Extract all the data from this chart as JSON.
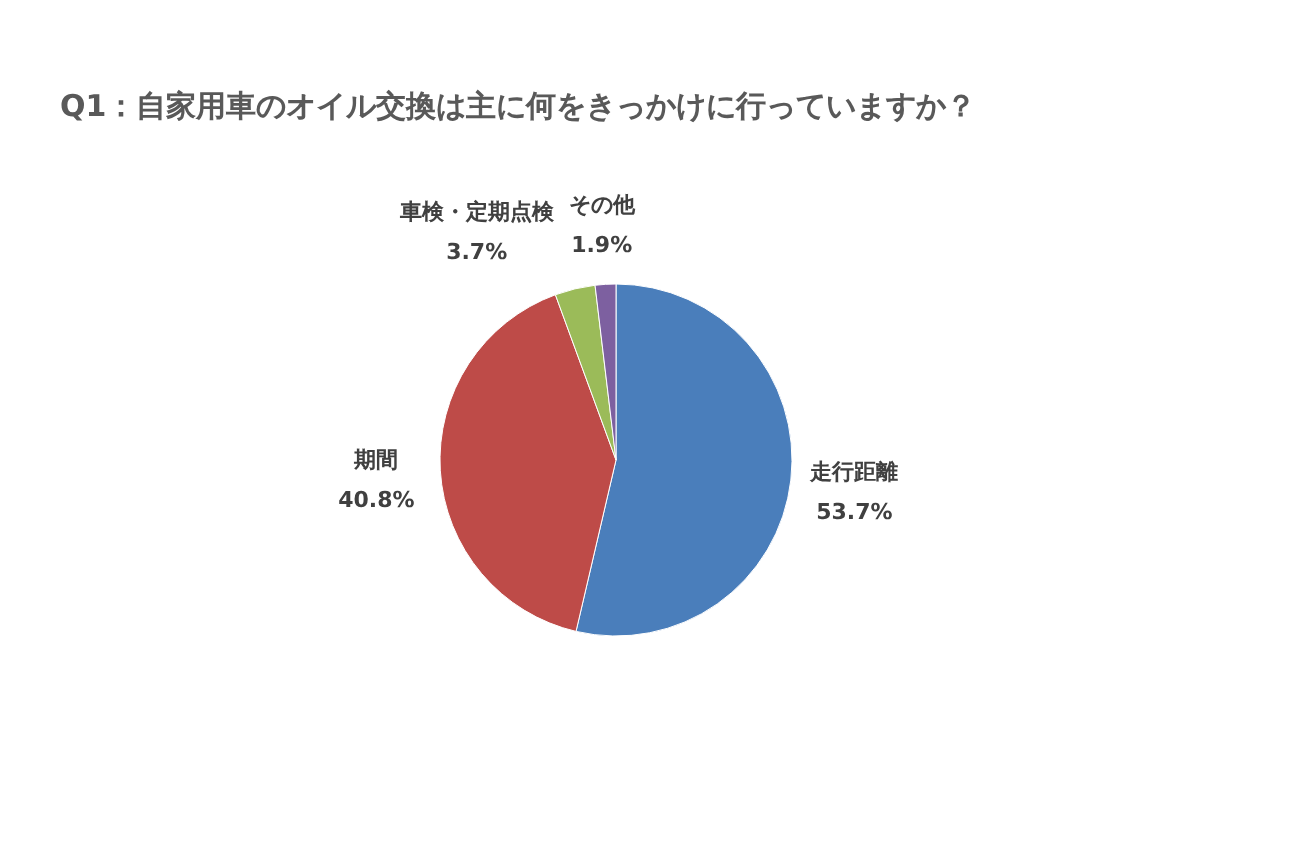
{
  "chart_data": {
    "type": "pie",
    "title": "Q1：自家用車のオイル交換は主に何をきっかけに行っていますか？",
    "categories": [
      "走行距離",
      "期間",
      "車検・定期点検",
      "その他"
    ],
    "values": [
      53.7,
      40.8,
      3.7,
      1.9
    ],
    "value_labels": [
      "53.7%",
      "40.8%",
      "3.7%",
      "1.9%"
    ],
    "colors": [
      "#4a7ebb",
      "#be4b48",
      "#9bbb59",
      "#7d60a0"
    ],
    "legend": false
  }
}
